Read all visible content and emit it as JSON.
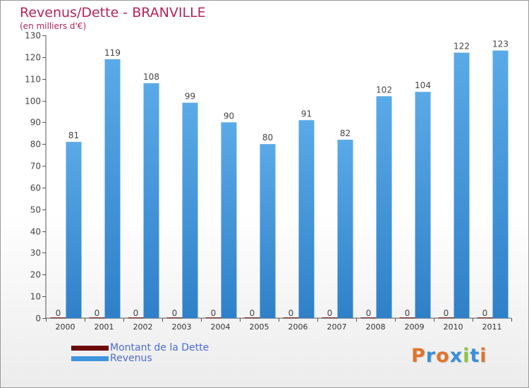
{
  "chart_data": {
    "type": "bar",
    "title": "Revenus/Dette - BRANVILLE",
    "subtitle": "(en milliers d'€)",
    "categories": [
      "2000",
      "2001",
      "2002",
      "2003",
      "2004",
      "2005",
      "2006",
      "2007",
      "2008",
      "2009",
      "2010",
      "2011"
    ],
    "series": [
      {
        "name": "Montant de la Dette",
        "color": "#6b0a0a",
        "values": [
          0,
          0,
          0,
          0,
          0,
          0,
          0,
          0,
          0,
          0,
          0,
          0
        ]
      },
      {
        "name": "Revenus",
        "color": "#3f95de",
        "values": [
          81,
          119,
          108,
          99,
          90,
          80,
          91,
          82,
          102,
          104,
          122,
          123
        ]
      }
    ],
    "ylim": [
      0,
      130
    ],
    "yticks": [
      0,
      10,
      20,
      30,
      40,
      50,
      60,
      70,
      80,
      90,
      100,
      110,
      120,
      130
    ],
    "grid": false,
    "legend": "bottom-left"
  },
  "legend": {
    "items": [
      {
        "label": "Montant de la Dette",
        "color": "#6b0a0a"
      },
      {
        "label": "Revenus",
        "color": "#3f95de"
      }
    ]
  },
  "logo": {
    "letters": [
      "P",
      "r",
      "o",
      "x",
      "i",
      "t",
      "i"
    ],
    "colors": [
      "#e0742c",
      "#3a8fd8",
      "#e0742c",
      "#3a8fd8",
      "#8ec63f",
      "#3a8fd8",
      "#e0742c"
    ]
  }
}
